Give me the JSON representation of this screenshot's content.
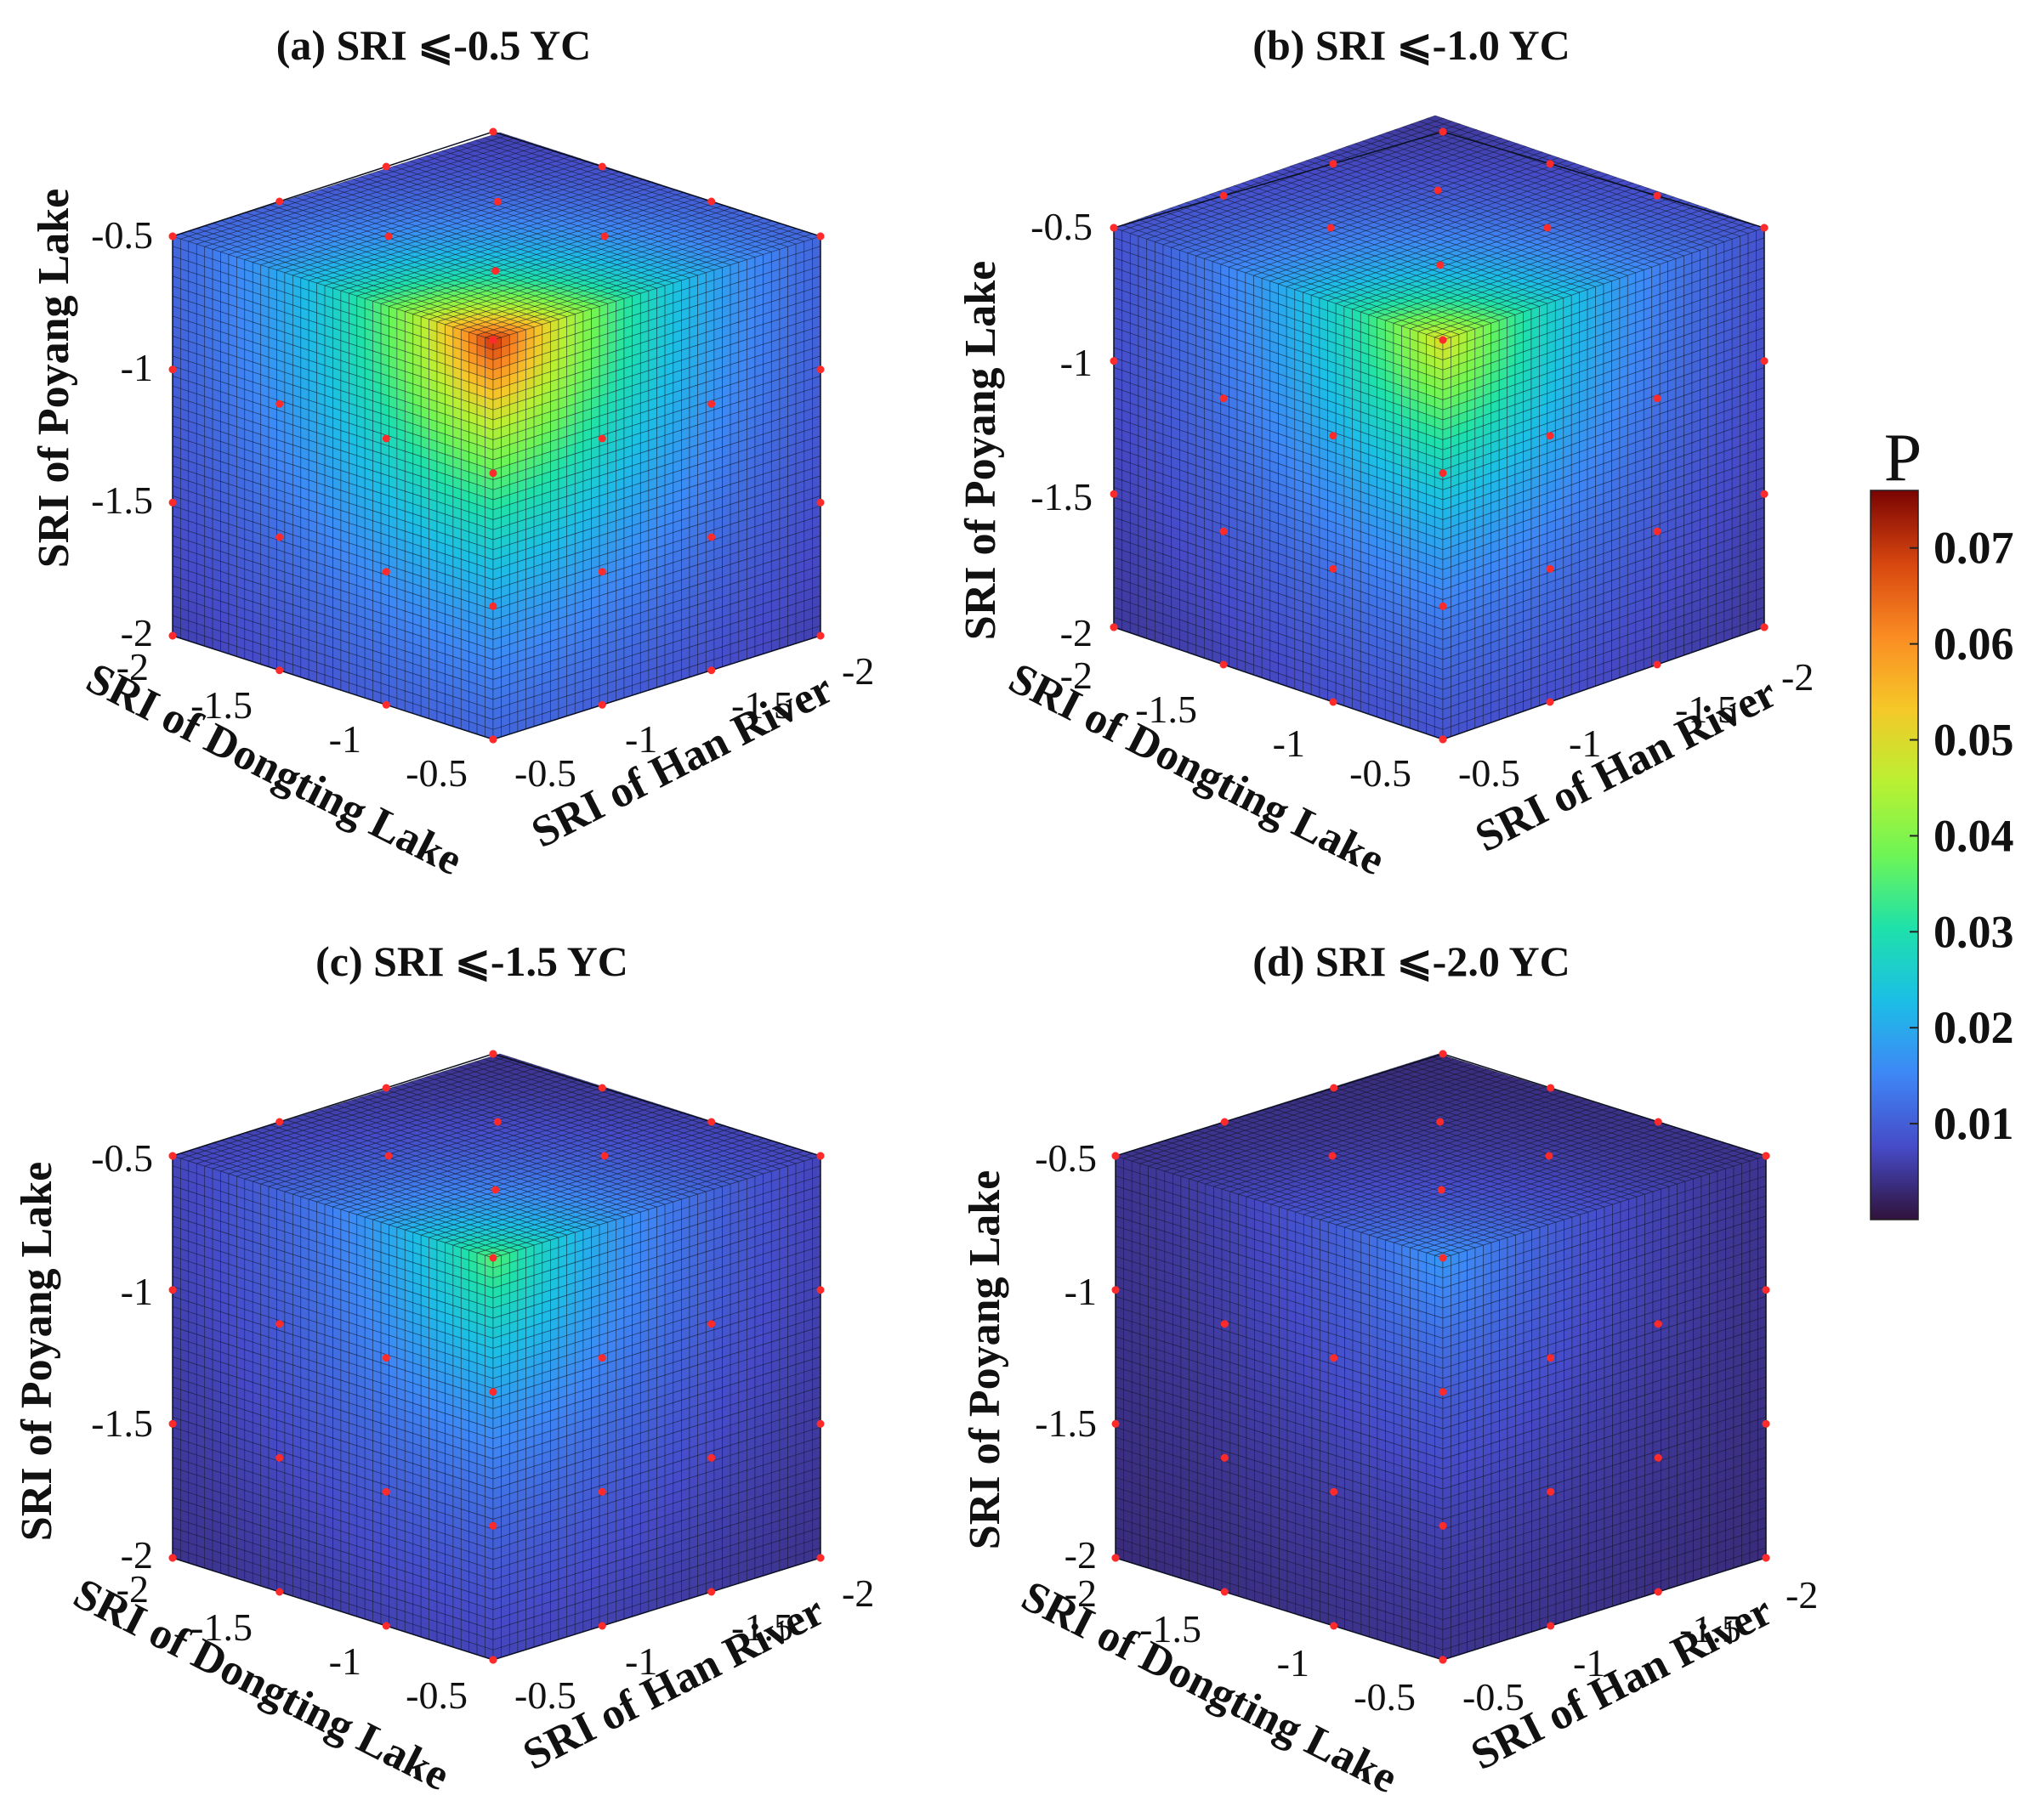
{
  "chart_data": [
    {
      "type": "heatmap",
      "title": "(a) SRI ⩽-0.5 YC",
      "threshold": -0.5,
      "peak_p": 0.074,
      "xlabel": "SRI of Dongting Lake",
      "ylabel": "SRI of Han River",
      "zlabel": "SRI of Poyang Lake",
      "x_ticks": [
        "-2",
        "-1.5",
        "-1",
        "-0.5"
      ],
      "y_ticks": [
        "-0.5",
        "-1",
        "-1.5",
        "-2"
      ],
      "z_ticks": [
        "-0.5",
        "-1",
        "-1.5",
        "-2"
      ],
      "xlim": [
        -2,
        -0.5
      ],
      "ylim": [
        -2,
        -0.5
      ],
      "zlim": [
        -2,
        -0.5
      ]
    },
    {
      "type": "heatmap",
      "title": "(b) SRI ⩽-1.0 YC",
      "threshold": -1.0,
      "peak_p": 0.052,
      "xlabel": "SRI of Dongting Lake",
      "ylabel": "SRI of Han River",
      "zlabel": "SRI of Poyang Lake",
      "x_ticks": [
        "-2",
        "-1.5",
        "-1",
        "-0.5"
      ],
      "y_ticks": [
        "-0.5",
        "-1",
        "-1.5",
        "-2"
      ],
      "z_ticks": [
        "-0.5",
        "-1",
        "-1.5",
        "-2"
      ],
      "xlim": [
        -2,
        -0.5
      ],
      "ylim": [
        -2,
        -0.5
      ],
      "zlim": [
        -2,
        -0.5
      ]
    },
    {
      "type": "heatmap",
      "title": "(c) SRI ⩽-1.5 YC",
      "threshold": -1.5,
      "peak_p": 0.036,
      "xlabel": "SRI of Dongting Lake",
      "ylabel": "SRI of Han River",
      "zlabel": "SRI of Poyang Lake",
      "x_ticks": [
        "-2",
        "-1.5",
        "-1",
        "-0.5"
      ],
      "y_ticks": [
        "-0.5",
        "-1",
        "-1.5",
        "-2"
      ],
      "z_ticks": [
        "-0.5",
        "-1",
        "-1.5",
        "-2"
      ],
      "xlim": [
        -2,
        -0.5
      ],
      "ylim": [
        -2,
        -0.5
      ],
      "zlim": [
        -2,
        -0.5
      ]
    },
    {
      "type": "heatmap",
      "title": "(d) SRI ⩽-2.0 YC",
      "threshold": -2.0,
      "peak_p": 0.016,
      "xlabel": "SRI of Dongting Lake",
      "ylabel": "SRI of Han River",
      "zlabel": "SRI of Poyang Lake",
      "x_ticks": [
        "-2",
        "-1.5",
        "-1",
        "-0.5"
      ],
      "y_ticks": [
        "-0.5",
        "-1",
        "-1.5",
        "-2"
      ],
      "z_ticks": [
        "-0.5",
        "-1",
        "-1.5",
        "-2"
      ],
      "xlim": [
        -2,
        -0.5
      ],
      "ylim": [
        -2,
        -0.5
      ],
      "zlim": [
        -2,
        -0.5
      ]
    }
  ],
  "colorbar": {
    "title": "P",
    "ticks": [
      "0.07",
      "0.06",
      "0.05",
      "0.04",
      "0.03",
      "0.02",
      "0.01"
    ],
    "tick_values": [
      0.07,
      0.06,
      0.05,
      0.04,
      0.03,
      0.02,
      0.01
    ],
    "range": [
      0.0,
      0.076
    ],
    "colormap": "turbo"
  },
  "colors": {
    "marker": "#ff2a2a",
    "grid_line": "#0b1020"
  }
}
